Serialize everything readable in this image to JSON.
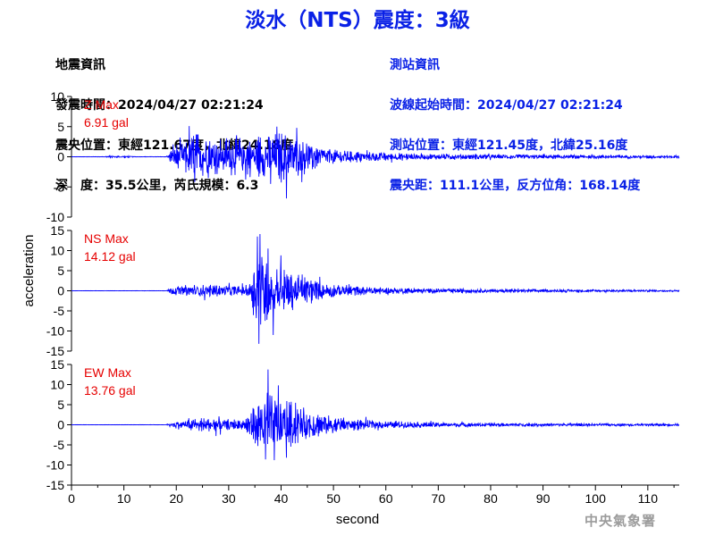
{
  "title": "淡水（NTS）震度：3級",
  "earthquake_info": {
    "heading": "地震資訊",
    "origin_time": "發震時間：2024/04/27 02:21:24",
    "epicenter": "震央位置：東經121.67度，北緯24.18度",
    "depth_magnitude": "深　度：35.5公里，芮氏規模：6.3"
  },
  "station_info": {
    "heading": "測站資訊",
    "wave_start": "波線起始時間：2024/04/27 02:21:24",
    "location": "測站位置：東經121.45度，北緯25.16度",
    "distance_azimuth": "震央距：111.1公里，反方位角：168.14度"
  },
  "agency": "中央氣象署",
  "colors": {
    "trace": "#0000ff",
    "max_label": "#e60000",
    "title": "#0a21e6"
  },
  "chart_data": {
    "type": "line",
    "xlabel": "second",
    "ylabel": "acceleration",
    "xlim": [
      0,
      116
    ],
    "xticks": [
      0,
      10,
      20,
      30,
      40,
      50,
      60,
      70,
      80,
      90,
      100,
      110
    ],
    "grid": false,
    "panels": [
      {
        "label": "Z Max",
        "max_text": "6.91 gal",
        "ylim": [
          -10,
          10
        ],
        "yticks": [
          10,
          5,
          0,
          -5,
          -10
        ],
        "envelope": [
          [
            0,
            0.02
          ],
          [
            6,
            0.03
          ],
          [
            7,
            0.12
          ],
          [
            11,
            0.12
          ],
          [
            12,
            0.03
          ],
          [
            18,
            0.03
          ],
          [
            18.5,
            0.6
          ],
          [
            20,
            1.8
          ],
          [
            22,
            3.2
          ],
          [
            24,
            3.6
          ],
          [
            26,
            3.0
          ],
          [
            28,
            2.8
          ],
          [
            30,
            2.6
          ],
          [
            32,
            2.8
          ],
          [
            34,
            2.9
          ],
          [
            36,
            3.1
          ],
          [
            38,
            3.3
          ],
          [
            40,
            3.5
          ],
          [
            42,
            3.0
          ],
          [
            44,
            2.6
          ],
          [
            46,
            2.0
          ],
          [
            48,
            1.5
          ],
          [
            50,
            1.1
          ],
          [
            55,
            0.8
          ],
          [
            60,
            0.6
          ],
          [
            70,
            0.45
          ],
          [
            80,
            0.35
          ],
          [
            90,
            0.3
          ],
          [
            100,
            0.25
          ],
          [
            110,
            0.22
          ],
          [
            116,
            0.2
          ]
        ],
        "peaks": [
          [
            22.5,
            5.1
          ],
          [
            23.5,
            -4.2
          ],
          [
            39.2,
            5.0
          ],
          [
            41,
            -6.91
          ],
          [
            43,
            4.8
          ],
          [
            38,
            -4.5
          ]
        ]
      },
      {
        "label": "NS Max",
        "max_text": "14.12 gal",
        "ylim": [
          -15,
          15
        ],
        "yticks": [
          15,
          10,
          5,
          0,
          -5,
          -10,
          -15
        ],
        "envelope": [
          [
            0,
            0.02
          ],
          [
            18,
            0.03
          ],
          [
            19,
            0.8
          ],
          [
            22,
            1.3
          ],
          [
            26,
            1.4
          ],
          [
            30,
            1.2
          ],
          [
            33,
            1.0
          ],
          [
            34,
            2.0
          ],
          [
            35,
            7.0
          ],
          [
            36,
            9.5
          ],
          [
            37,
            8.0
          ],
          [
            38,
            6.5
          ],
          [
            39,
            5.0
          ],
          [
            41,
            4.5
          ],
          [
            43,
            3.8
          ],
          [
            45,
            3.0
          ],
          [
            48,
            2.0
          ],
          [
            50,
            1.5
          ],
          [
            55,
            1.0
          ],
          [
            60,
            0.7
          ],
          [
            70,
            0.5
          ],
          [
            80,
            0.38
          ],
          [
            90,
            0.3
          ],
          [
            100,
            0.25
          ],
          [
            116,
            0.2
          ]
        ],
        "peaks": [
          [
            35.5,
            13.5
          ],
          [
            36,
            14.12
          ],
          [
            35.8,
            -13.2
          ],
          [
            38.5,
            -11.0
          ],
          [
            37.5,
            10.5
          ],
          [
            40,
            8.8
          ]
        ]
      },
      {
        "label": "EW Max",
        "max_text": "13.76 gal",
        "ylim": [
          -15,
          15
        ],
        "yticks": [
          15,
          10,
          5,
          0,
          -5,
          -10,
          -15
        ],
        "envelope": [
          [
            0,
            0.02
          ],
          [
            18,
            0.03
          ],
          [
            19,
            0.6
          ],
          [
            22,
            1.4
          ],
          [
            26,
            1.6
          ],
          [
            30,
            1.3
          ],
          [
            33,
            1.2
          ],
          [
            34,
            3.0
          ],
          [
            36,
            5.5
          ],
          [
            37,
            7.5
          ],
          [
            38,
            7.0
          ],
          [
            40,
            6.0
          ],
          [
            42,
            4.8
          ],
          [
            44,
            3.8
          ],
          [
            46,
            3.0
          ],
          [
            48,
            2.2
          ],
          [
            50,
            1.8
          ],
          [
            55,
            1.2
          ],
          [
            60,
            0.8
          ],
          [
            70,
            0.55
          ],
          [
            80,
            0.4
          ],
          [
            90,
            0.32
          ],
          [
            100,
            0.28
          ],
          [
            116,
            0.22
          ]
        ],
        "peaks": [
          [
            37.5,
            13.76
          ],
          [
            37,
            -8.6
          ],
          [
            38.7,
            -8.8
          ],
          [
            39.5,
            9.8
          ],
          [
            41,
            -8.2
          ]
        ]
      }
    ]
  }
}
